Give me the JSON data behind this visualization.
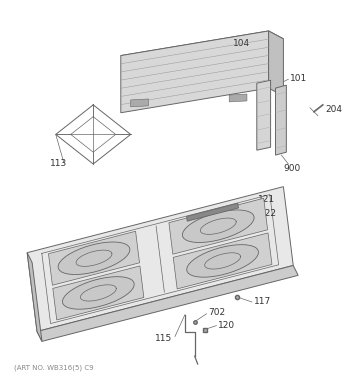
{
  "art_no_label": "(ART NO. WB316(5) C9",
  "background_color": "#ffffff",
  "line_color": "#666666",
  "label_color": "#333333",
  "font_size": 6.5,
  "figsize": [
    3.5,
    3.73
  ],
  "dpi": 100
}
